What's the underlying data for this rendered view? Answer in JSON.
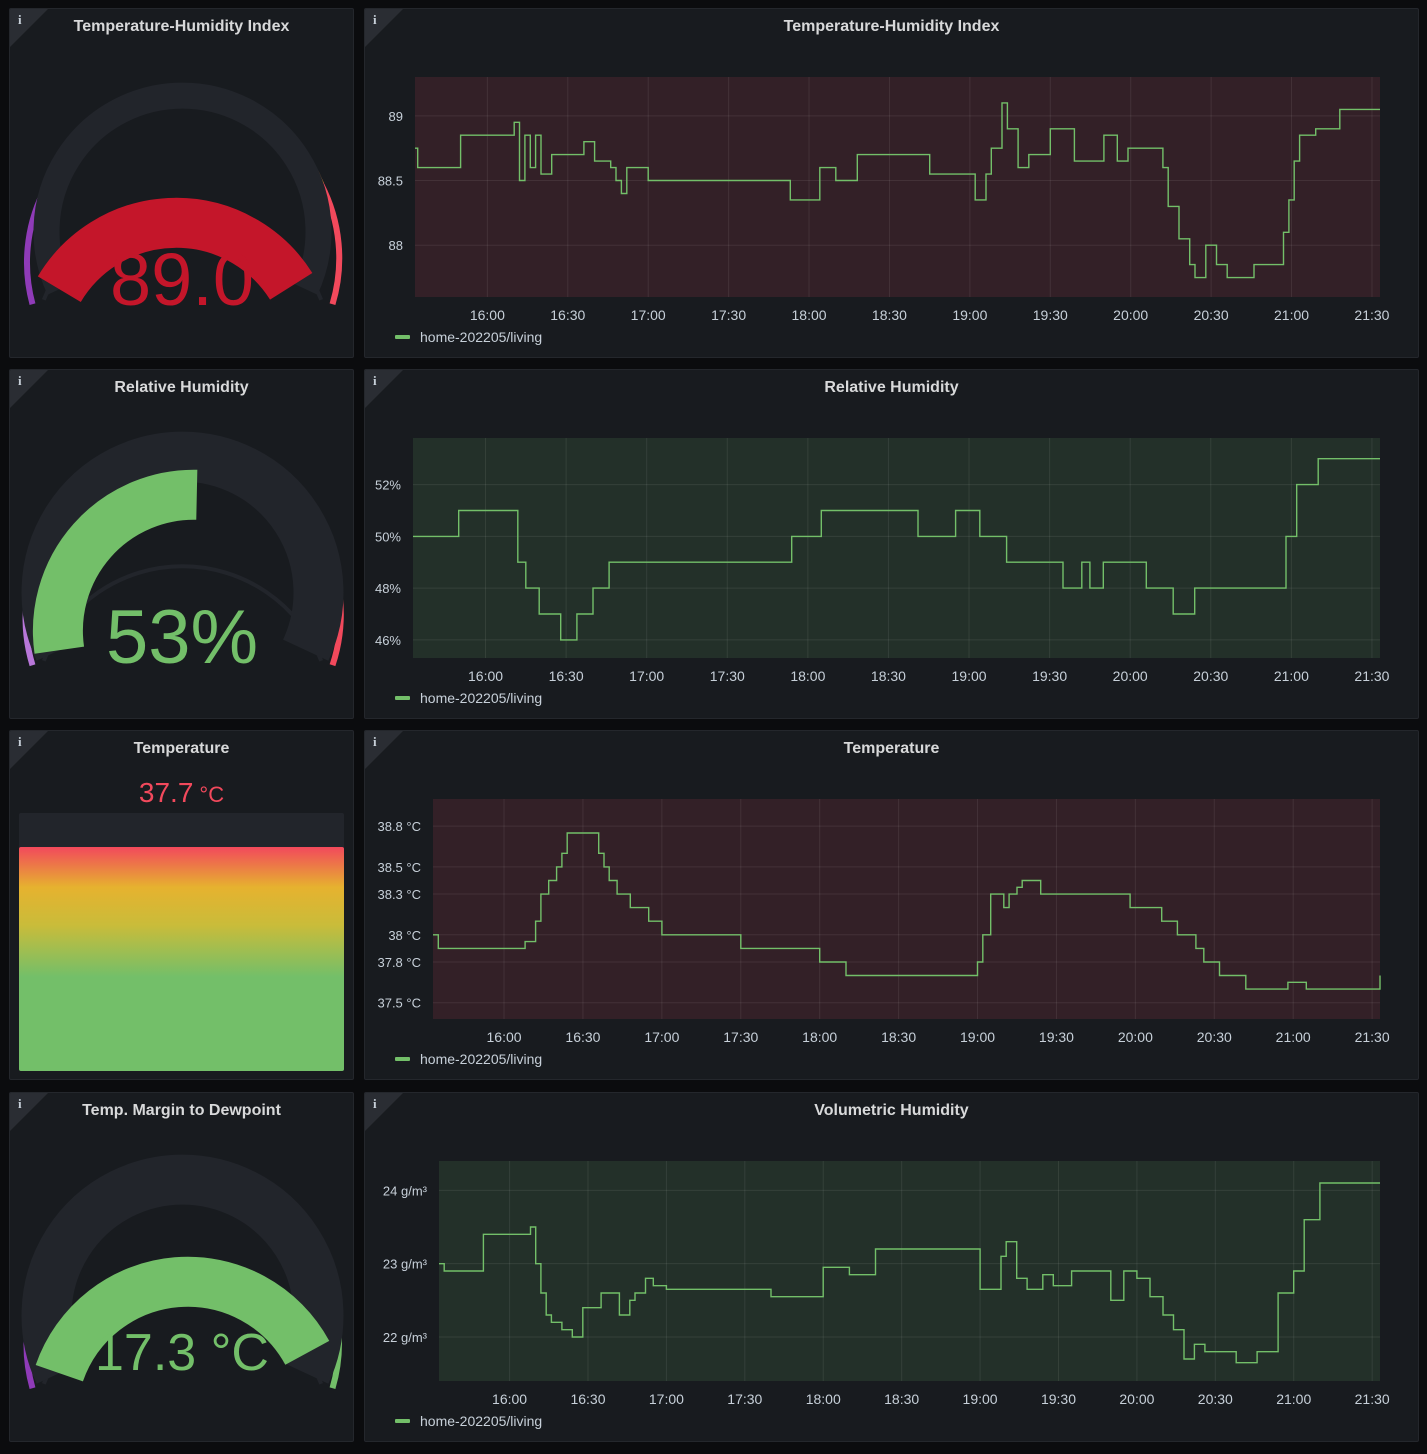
{
  "panels": {
    "thi_gauge": {
      "title": "Temperature-Humidity Index",
      "value": "89.0",
      "value_color": "#c4162a"
    },
    "thi_graph": {
      "title": "Temperature-Humidity Index",
      "legend": "home-202205/living"
    },
    "rh_gauge": {
      "title": "Relative Humidity",
      "value": "53%",
      "value_color": "#73bf69"
    },
    "rh_graph": {
      "title": "Relative Humidity",
      "legend": "home-202205/living"
    },
    "temp_stat": {
      "title": "Temperature",
      "value": "37.7",
      "unit": "°C",
      "value_color": "#f2495c"
    },
    "temp_graph": {
      "title": "Temperature",
      "legend": "home-202205/living"
    },
    "dew_gauge": {
      "title": "Temp. Margin to Dewpoint",
      "value": "17.3 °C",
      "value_color": "#73bf69"
    },
    "vh_graph": {
      "title": "Volumetric Humidity",
      "legend": "home-202205/living"
    }
  },
  "icons": {
    "info": "info-icon"
  },
  "colors": {
    "series": "#73bf69",
    "red_zone": "#f2495c",
    "green_zone": "#73bf69",
    "panel_bg": "#181b1f"
  },
  "chart_data": [
    {
      "type": "line",
      "title": "Temperature-Humidity Index",
      "x_ticks": [
        "16:00",
        "16:30",
        "17:00",
        "17:30",
        "18:00",
        "18:30",
        "19:00",
        "19:30",
        "20:00",
        "20:30",
        "21:00",
        "21:30"
      ],
      "y_ticks": [
        "88",
        "88.5",
        "89"
      ],
      "xlim": [
        "15:33",
        "21:33"
      ],
      "ylim": [
        87.6,
        89.3
      ],
      "zone": "red",
      "series": [
        {
          "name": "home-202205/living",
          "x": [
            "15:33",
            "15:34",
            "15:50",
            "16:10",
            "16:12",
            "16:14",
            "16:16",
            "16:18",
            "16:20",
            "16:24",
            "16:28",
            "16:36",
            "16:40",
            "16:46",
            "16:48",
            "16:50",
            "16:52",
            "17:00",
            "17:30",
            "17:53",
            "18:04",
            "18:10",
            "18:18",
            "18:45",
            "18:57",
            "19:02",
            "19:06",
            "19:08",
            "19:12",
            "19:14",
            "19:18",
            "19:22",
            "19:30",
            "19:39",
            "19:50",
            "19:55",
            "19:59",
            "20:12",
            "20:14",
            "20:18",
            "20:22",
            "20:24",
            "20:28",
            "20:32",
            "20:36",
            "20:46",
            "20:57",
            "20:59",
            "21:01",
            "21:03",
            "21:09",
            "21:18",
            "21:33"
          ],
          "y": [
            88.75,
            88.6,
            88.85,
            88.95,
            88.5,
            88.85,
            88.6,
            88.85,
            88.55,
            88.7,
            88.7,
            88.8,
            88.65,
            88.6,
            88.5,
            88.4,
            88.6,
            88.5,
            88.5,
            88.35,
            88.6,
            88.5,
            88.7,
            88.55,
            88.55,
            88.35,
            88.55,
            88.75,
            89.1,
            88.9,
            88.6,
            88.7,
            88.9,
            88.65,
            88.85,
            88.65,
            88.75,
            88.6,
            88.3,
            88.05,
            87.85,
            87.75,
            88,
            87.85,
            87.75,
            87.85,
            88.1,
            88.35,
            88.65,
            88.85,
            88.9,
            89.05,
            89.05
          ]
        }
      ]
    },
    {
      "type": "line",
      "title": "Relative Humidity",
      "x_ticks": [
        "16:00",
        "16:30",
        "17:00",
        "17:30",
        "18:00",
        "18:30",
        "19:00",
        "19:30",
        "20:00",
        "20:30",
        "21:00",
        "21:30"
      ],
      "y_ticks": [
        "46%",
        "48%",
        "50%",
        "52%"
      ],
      "xlim": [
        "15:33",
        "21:33"
      ],
      "ylim": [
        45.3,
        53.8
      ],
      "zone": "green",
      "series": [
        {
          "name": "home-202205/living",
          "x": [
            "15:33",
            "15:50",
            "16:10",
            "16:12",
            "16:15",
            "16:20",
            "16:24",
            "16:28",
            "16:34",
            "16:40",
            "16:46",
            "16:52",
            "17:00",
            "17:30",
            "17:54",
            "18:05",
            "18:30",
            "18:41",
            "18:55",
            "19:04",
            "19:14",
            "19:20",
            "19:35",
            "19:42",
            "19:45",
            "19:50",
            "19:55",
            "20:06",
            "20:16",
            "20:24",
            "20:33",
            "20:56",
            "20:58",
            "21:02",
            "21:10",
            "21:33"
          ],
          "y": [
            50,
            51,
            51,
            49,
            48,
            47,
            47,
            46,
            47,
            48,
            49,
            49,
            49,
            49,
            50,
            51,
            51,
            50,
            51,
            50,
            49,
            49,
            48,
            49,
            48,
            49,
            49,
            48,
            47,
            48,
            48,
            48,
            50,
            52,
            53,
            53
          ]
        }
      ]
    },
    {
      "type": "line",
      "title": "Temperature",
      "x_ticks": [
        "16:00",
        "16:30",
        "17:00",
        "17:30",
        "18:00",
        "18:30",
        "19:00",
        "19:30",
        "20:00",
        "20:30",
        "21:00",
        "21:30"
      ],
      "y_ticks": [
        "37.5 °C",
        "37.8 °C",
        "38 °C",
        "38.3 °C",
        "38.5 °C",
        "38.8 °C"
      ],
      "xlim": [
        "15:33",
        "21:33"
      ],
      "ylim": [
        37.38,
        39.0
      ],
      "zone": "red",
      "series": [
        {
          "name": "home-202205/living",
          "x": [
            "15:33",
            "15:35",
            "16:08",
            "16:12",
            "16:14",
            "16:17",
            "16:20",
            "16:22",
            "16:24",
            "16:27",
            "16:36",
            "16:38",
            "16:40",
            "16:43",
            "16:48",
            "16:55",
            "17:00",
            "17:30",
            "17:40",
            "18:00",
            "18:10",
            "18:40",
            "18:57",
            "19:00",
            "19:02",
            "19:05",
            "19:10",
            "19:12",
            "19:15",
            "19:17",
            "19:24",
            "19:54",
            "19:58",
            "20:06",
            "20:10",
            "20:16",
            "20:23",
            "20:26",
            "20:32",
            "20:42",
            "20:47",
            "20:56",
            "20:58",
            "21:05",
            "21:10",
            "21:33"
          ],
          "y": [
            38,
            37.9,
            37.95,
            38.1,
            38.3,
            38.4,
            38.5,
            38.6,
            38.75,
            38.75,
            38.6,
            38.5,
            38.4,
            38.3,
            38.2,
            38.1,
            38,
            37.9,
            37.9,
            37.8,
            37.7,
            37.7,
            37.7,
            37.8,
            38.0,
            38.3,
            38.2,
            38.3,
            38.35,
            38.4,
            38.3,
            38.3,
            38.2,
            38.2,
            38.1,
            38.0,
            37.9,
            37.8,
            37.7,
            37.6,
            37.6,
            37.6,
            37.65,
            37.6,
            37.6,
            37.7
          ]
        }
      ]
    },
    {
      "type": "line",
      "title": "Volumetric Humidity",
      "x_ticks": [
        "16:00",
        "16:30",
        "17:00",
        "17:30",
        "18:00",
        "18:30",
        "19:00",
        "19:30",
        "20:00",
        "20:30",
        "21:00",
        "21:30"
      ],
      "y_ticks": [
        "22 g/m³",
        "23 g/m³",
        "24 g/m³"
      ],
      "xlim": [
        "15:33",
        "21:33"
      ],
      "ylim": [
        21.4,
        24.4
      ],
      "zone": "green",
      "series": [
        {
          "name": "home-202205/living",
          "x": [
            "15:33",
            "15:35",
            "15:50",
            "16:08",
            "16:10",
            "16:12",
            "16:14",
            "16:16",
            "16:20",
            "16:24",
            "16:28",
            "16:35",
            "16:42",
            "16:46",
            "16:48",
            "16:52",
            "16:55",
            "17:00",
            "17:20",
            "17:40",
            "18:00",
            "18:10",
            "18:20",
            "18:30",
            "18:40",
            "19:00",
            "19:08",
            "19:10",
            "19:14",
            "19:18",
            "19:24",
            "19:28",
            "19:35",
            "19:42",
            "19:50",
            "19:55",
            "20:00",
            "20:05",
            "20:10",
            "20:14",
            "20:18",
            "20:22",
            "20:26",
            "20:32",
            "20:38",
            "20:46",
            "20:54",
            "21:00",
            "21:04",
            "21:10",
            "21:33"
          ],
          "y": [
            23,
            22.9,
            23.4,
            23.5,
            23,
            22.6,
            22.3,
            22.2,
            22.1,
            22.0,
            22.4,
            22.6,
            22.3,
            22.5,
            22.6,
            22.8,
            22.7,
            22.65,
            22.65,
            22.55,
            22.95,
            22.85,
            23.2,
            23.2,
            23.2,
            22.65,
            23.1,
            23.3,
            22.8,
            22.65,
            22.85,
            22.7,
            22.9,
            22.9,
            22.5,
            22.9,
            22.8,
            22.55,
            22.3,
            22.1,
            21.7,
            21.9,
            21.8,
            21.8,
            21.65,
            21.8,
            22.6,
            22.9,
            23.6,
            24.1,
            24.1
          ]
        }
      ]
    }
  ]
}
